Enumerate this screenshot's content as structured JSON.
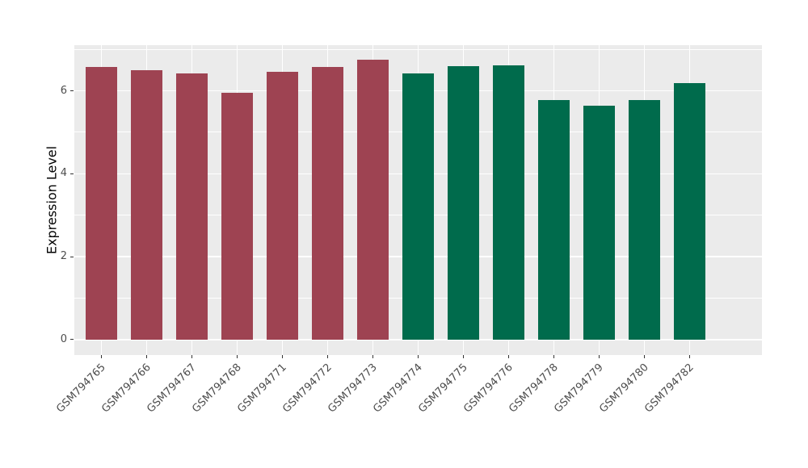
{
  "figure": {
    "background_color": "#FFFFFF",
    "panel_background_color": "#EBEBEB",
    "grid_color": "#FFFFFF",
    "axis_text_color": "#4D4D4D",
    "axis_title_color": "#000000"
  },
  "chart_data": {
    "type": "bar",
    "title": "",
    "xlabel": "",
    "ylabel": "Expression Level",
    "categories": [
      "GSM794765",
      "GSM794766",
      "GSM794767",
      "GSM794768",
      "GSM794771",
      "GSM794772",
      "GSM794773",
      "GSM794774",
      "GSM794775",
      "GSM794776",
      "GSM794778",
      "GSM794779",
      "GSM794780",
      "GSM794782"
    ],
    "values": [
      6.58,
      6.5,
      6.42,
      5.95,
      6.45,
      6.57,
      6.75,
      6.41,
      6.59,
      6.62,
      5.78,
      5.65,
      5.77,
      6.18
    ],
    "groups": [
      "group1",
      "group1",
      "group1",
      "group1",
      "group1",
      "group1",
      "group1",
      "group2",
      "group2",
      "group2",
      "group2",
      "group2",
      "group2",
      "group2"
    ],
    "group_colors": {
      "group1": "#9E4352",
      "group2": "#006B4C"
    },
    "yticks": [
      0,
      2,
      4,
      6
    ],
    "ytick_labels": [
      "0",
      "2",
      "4",
      "6"
    ],
    "minor_yticks": [
      1,
      3,
      5,
      7
    ],
    "ylim": [
      -0.37,
      7.1
    ],
    "grid": true,
    "legend_position": "none",
    "bar_relative_width": 0.7,
    "x_label_rotation_deg": 45
  }
}
